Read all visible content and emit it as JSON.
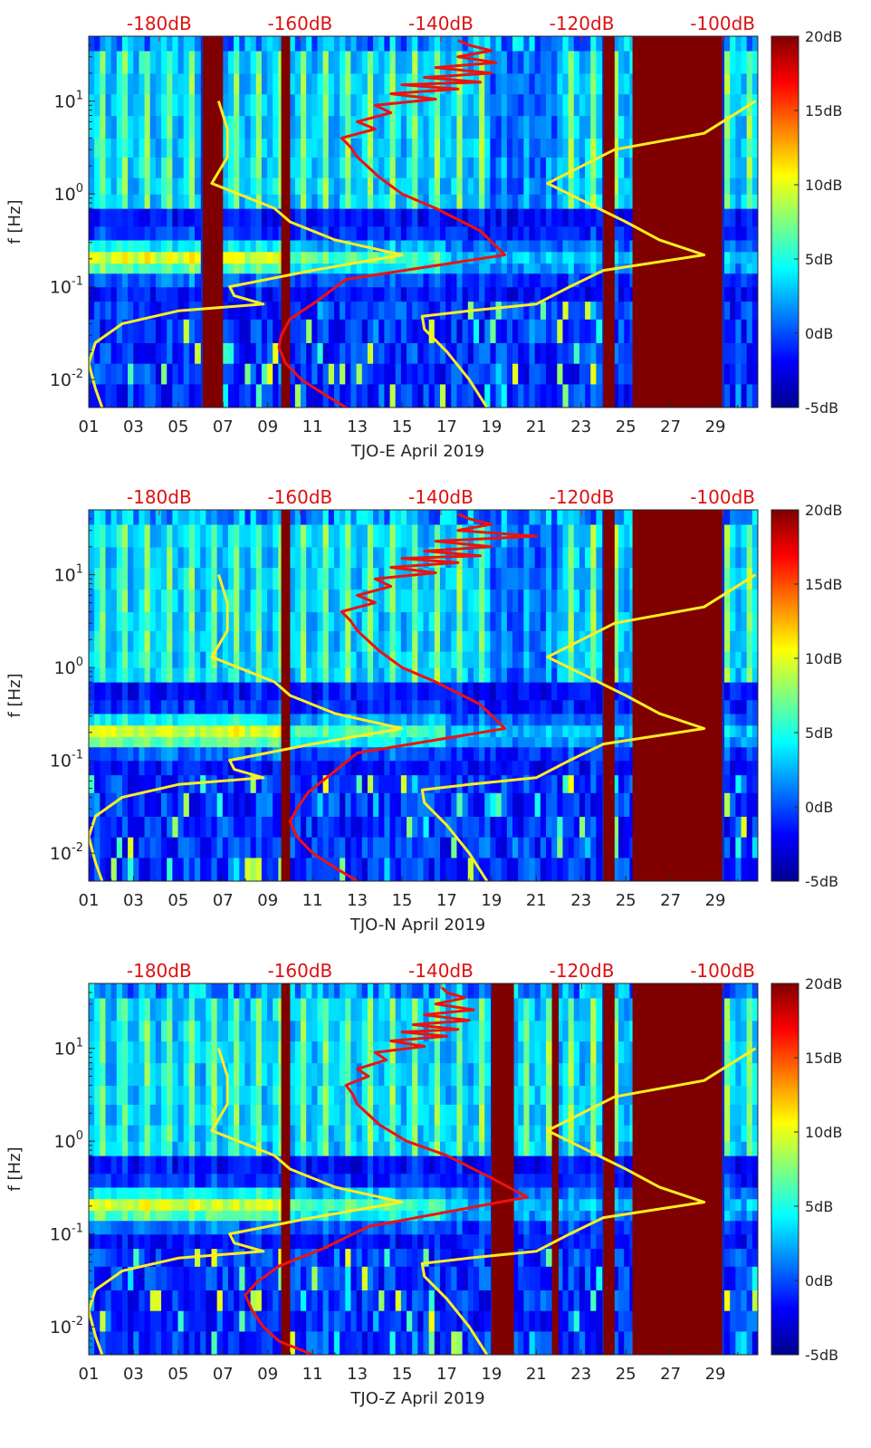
{
  "chart_data": [
    {
      "type": "heatmap",
      "station_label": "TJO-E April 2019",
      "ylabel": "f [Hz]",
      "x_ticks": [
        "01",
        "03",
        "05",
        "07",
        "09",
        "11",
        "13",
        "15",
        "17",
        "19",
        "21",
        "23",
        "25",
        "27",
        "29"
      ],
      "y_ticks": [
        {
          "value": 0.01,
          "base": "10",
          "exp": "-2"
        },
        {
          "value": 0.1,
          "base": "10",
          "exp": "-1"
        },
        {
          "value": 1,
          "base": "10",
          "exp": "0"
        },
        {
          "value": 10,
          "base": "10",
          "exp": "1"
        }
      ],
      "top_ticks": [
        "-180dB",
        "-160dB",
        "-140dB",
        "-120dB",
        "-100dB"
      ],
      "colorbar_ticks": [
        "20dB",
        "15dB",
        "10dB",
        "5dB",
        "0dB",
        "-5dB"
      ],
      "color_range": [
        -5,
        20
      ],
      "xlim": [
        1,
        30.9
      ],
      "ylim": [
        0.005,
        50
      ],
      "yscale": "log",
      "top_axis_range_db": [
        -190,
        -95
      ],
      "saturated_day_ranges": [
        [
          6.1,
          7.0
        ],
        [
          9.6,
          10.0
        ],
        [
          24.0,
          24.5
        ],
        [
          25.3,
          29.3
        ]
      ],
      "series": [
        {
          "color": "#ffee22",
          "freq": [
            0.005,
            0.008,
            0.015,
            0.025,
            0.04,
            0.055,
            0.065,
            0.08,
            0.1,
            0.15,
            0.22,
            0.32,
            0.5,
            0.7,
            1.3,
            2.5,
            5,
            10
          ],
          "days": [
            1.6,
            1.3,
            1.0,
            1.3,
            2.5,
            5.0,
            8.8,
            7.5,
            7.3,
            11.0,
            15.0,
            12.0,
            10.0,
            9.3,
            6.5,
            7.2,
            7.2,
            6.8
          ]
        },
        {
          "color": "#ffee22",
          "freq": [
            0.005,
            0.01,
            0.02,
            0.035,
            0.048,
            0.055,
            0.065,
            0.1,
            0.15,
            0.22,
            0.32,
            0.5,
            1.3,
            3.0,
            4.5,
            10
          ],
          "days": [
            18.8,
            18.0,
            17.0,
            16.0,
            15.9,
            18.0,
            21.0,
            22.5,
            24.0,
            28.5,
            26.5,
            25.0,
            21.5,
            24.5,
            28.5,
            30.8
          ]
        },
        {
          "color": "#ee1111",
          "freq": [
            0.005,
            0.007,
            0.01,
            0.015,
            0.022,
            0.03,
            0.045,
            0.07,
            0.12,
            0.22,
            0.4,
            0.7,
            1.0,
            1.5,
            2.5,
            3.2,
            4.0,
            5.0,
            6.0,
            7.5,
            9.0,
            10.5,
            12.0,
            13.5,
            15.0,
            16.0,
            18.0,
            20.0,
            23.0,
            26.0,
            30.0,
            35.0,
            40.0,
            45.0
          ],
          "days": [
            12.5,
            11.5,
            10.5,
            9.8,
            9.5,
            9.6,
            10.0,
            11.2,
            12.5,
            19.6,
            18.5,
            16.5,
            15.0,
            14.0,
            13.0,
            12.7,
            12.3,
            13.8,
            13.0,
            14.5,
            13.8,
            16.5,
            14.5,
            17.5,
            15.0,
            18.5,
            16.0,
            19.0,
            16.5,
            19.2,
            17.5,
            19.0,
            18.0,
            17.5
          ]
        }
      ]
    },
    {
      "type": "heatmap",
      "station_label": "TJO-N April 2019",
      "ylabel": "f [Hz]",
      "x_ticks": [
        "01",
        "03",
        "05",
        "07",
        "09",
        "11",
        "13",
        "15",
        "17",
        "19",
        "21",
        "23",
        "25",
        "27",
        "29"
      ],
      "y_ticks": [
        {
          "value": 0.01,
          "base": "10",
          "exp": "-2"
        },
        {
          "value": 0.1,
          "base": "10",
          "exp": "-1"
        },
        {
          "value": 1,
          "base": "10",
          "exp": "0"
        },
        {
          "value": 10,
          "base": "10",
          "exp": "1"
        }
      ],
      "top_ticks": [
        "-180dB",
        "-160dB",
        "-140dB",
        "-120dB",
        "-100dB"
      ],
      "colorbar_ticks": [
        "20dB",
        "15dB",
        "10dB",
        "5dB",
        "0dB",
        "-5dB"
      ],
      "color_range": [
        -5,
        20
      ],
      "xlim": [
        1,
        30.9
      ],
      "ylim": [
        0.005,
        50
      ],
      "yscale": "log",
      "top_axis_range_db": [
        -190,
        -95
      ],
      "saturated_day_ranges": [
        [
          9.6,
          10.0
        ],
        [
          24.0,
          24.5
        ],
        [
          25.3,
          29.3
        ]
      ],
      "series": [
        {
          "color": "#ffee22",
          "freq": [
            0.005,
            0.008,
            0.015,
            0.025,
            0.04,
            0.055,
            0.065,
            0.08,
            0.1,
            0.15,
            0.22,
            0.32,
            0.5,
            0.7,
            1.3,
            2.5,
            5,
            10
          ],
          "days": [
            1.6,
            1.3,
            1.0,
            1.3,
            2.5,
            5.0,
            8.8,
            7.5,
            7.3,
            11.0,
            15.0,
            12.0,
            10.0,
            9.3,
            6.5,
            7.2,
            7.2,
            6.8
          ]
        },
        {
          "color": "#ffee22",
          "freq": [
            0.005,
            0.01,
            0.02,
            0.035,
            0.048,
            0.055,
            0.065,
            0.1,
            0.15,
            0.22,
            0.32,
            0.5,
            1.3,
            3.0,
            4.5,
            10
          ],
          "days": [
            18.8,
            18.0,
            17.0,
            16.0,
            15.9,
            18.0,
            21.0,
            22.5,
            24.0,
            28.5,
            26.5,
            25.0,
            21.5,
            24.5,
            28.5,
            30.8
          ]
        },
        {
          "color": "#ee1111",
          "freq": [
            0.005,
            0.007,
            0.01,
            0.015,
            0.022,
            0.03,
            0.045,
            0.07,
            0.12,
            0.22,
            0.4,
            0.7,
            1.0,
            1.5,
            2.5,
            3.2,
            4.0,
            5.0,
            6.0,
            7.5,
            9.0,
            10.5,
            12.0,
            13.5,
            15.0,
            16.0,
            18.0,
            20.0,
            23.0,
            26.0,
            30.0,
            35.0,
            40.0,
            45.0
          ],
          "days": [
            13.0,
            12.0,
            11.0,
            10.3,
            10.0,
            10.3,
            10.8,
            11.8,
            13.0,
            19.6,
            18.5,
            16.5,
            15.0,
            14.0,
            13.0,
            12.7,
            12.3,
            13.8,
            13.0,
            14.5,
            13.8,
            16.5,
            14.5,
            17.5,
            15.0,
            18.5,
            16.0,
            19.0,
            16.5,
            21.0,
            17.5,
            19.0,
            18.0,
            17.5
          ]
        }
      ]
    },
    {
      "type": "heatmap",
      "station_label": "TJO-Z April 2019",
      "ylabel": "f [Hz]",
      "x_ticks": [
        "01",
        "03",
        "05",
        "07",
        "09",
        "11",
        "13",
        "15",
        "17",
        "19",
        "21",
        "23",
        "25",
        "27",
        "29"
      ],
      "y_ticks": [
        {
          "value": 0.01,
          "base": "10",
          "exp": "-2"
        },
        {
          "value": 0.1,
          "base": "10",
          "exp": "-1"
        },
        {
          "value": 1,
          "base": "10",
          "exp": "0"
        },
        {
          "value": 10,
          "base": "10",
          "exp": "1"
        }
      ],
      "top_ticks": [
        "-180dB",
        "-160dB",
        "-140dB",
        "-120dB",
        "-100dB"
      ],
      "colorbar_ticks": [
        "20dB",
        "15dB",
        "10dB",
        "5dB",
        "0dB",
        "-5dB"
      ],
      "color_range": [
        -5,
        20
      ],
      "xlim": [
        1,
        30.9
      ],
      "ylim": [
        0.005,
        50
      ],
      "yscale": "log",
      "top_axis_range_db": [
        -190,
        -95
      ],
      "saturated_day_ranges": [
        [
          9.6,
          10.0
        ],
        [
          19.0,
          20.0
        ],
        [
          21.7,
          22.0
        ],
        [
          24.0,
          24.5
        ],
        [
          25.3,
          29.3
        ]
      ],
      "series": [
        {
          "color": "#ffee22",
          "freq": [
            0.005,
            0.008,
            0.015,
            0.025,
            0.04,
            0.055,
            0.065,
            0.08,
            0.1,
            0.15,
            0.22,
            0.32,
            0.5,
            0.7,
            1.3,
            2.5,
            5,
            10
          ],
          "days": [
            1.6,
            1.3,
            1.0,
            1.3,
            2.5,
            5.0,
            8.8,
            7.5,
            7.3,
            11.0,
            15.0,
            12.0,
            10.0,
            9.3,
            6.5,
            7.2,
            7.2,
            6.8
          ]
        },
        {
          "color": "#ffee22",
          "freq": [
            0.005,
            0.01,
            0.02,
            0.035,
            0.048,
            0.055,
            0.065,
            0.1,
            0.15,
            0.22,
            0.32,
            0.5,
            1.3,
            3.0,
            4.5,
            10
          ],
          "days": [
            18.8,
            18.0,
            17.0,
            16.0,
            15.9,
            18.0,
            21.0,
            22.5,
            24.0,
            28.5,
            26.5,
            25.0,
            21.5,
            24.5,
            28.5,
            30.8
          ]
        },
        {
          "color": "#ee1111",
          "freq": [
            0.005,
            0.007,
            0.01,
            0.015,
            0.022,
            0.03,
            0.045,
            0.07,
            0.12,
            0.25,
            0.4,
            0.7,
            1.0,
            1.5,
            2.5,
            3.2,
            4.0,
            5.0,
            6.0,
            7.5,
            9.0,
            10.5,
            12.0,
            13.5,
            15.0,
            16.0,
            18.0,
            20.0,
            23.0,
            26.0,
            30.0,
            35.0,
            40.0,
            45.0
          ],
          "days": [
            11.0,
            9.5,
            8.8,
            8.3,
            8.0,
            8.5,
            9.5,
            11.5,
            13.5,
            20.6,
            19.0,
            17.0,
            15.2,
            14.0,
            13.0,
            12.8,
            12.5,
            13.5,
            13.0,
            14.3,
            13.8,
            16.0,
            14.5,
            17.0,
            15.0,
            17.5,
            15.5,
            18.0,
            16.0,
            18.2,
            16.5,
            17.8,
            17.0,
            16.8
          ]
        }
      ]
    }
  ]
}
